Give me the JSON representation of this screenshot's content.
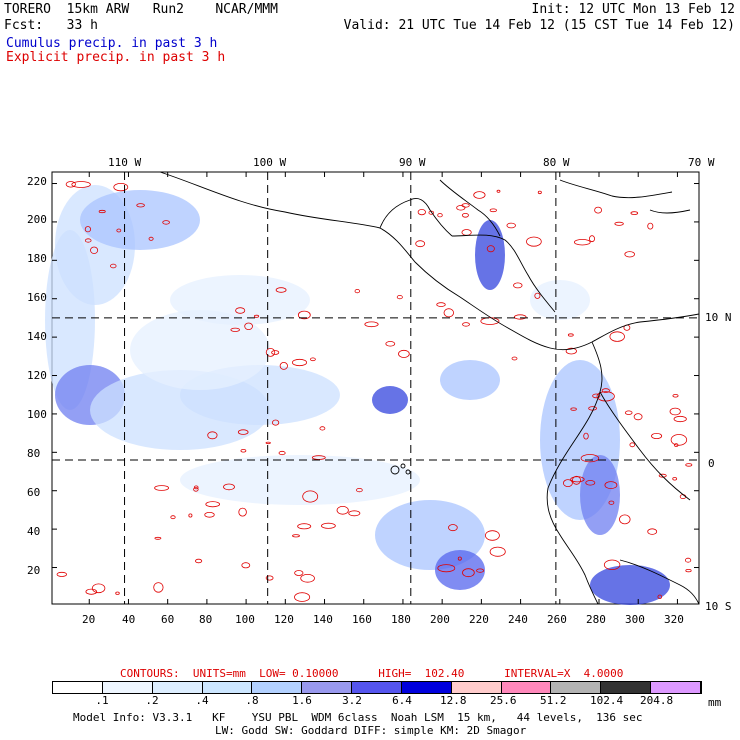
{
  "header": {
    "model": "TORERO  15km ARW   Run2    NCAR/MMM",
    "init": "Init: 12 UTC Mon 13 Feb 12",
    "forecast": "Fcst:   33 h",
    "valid": "Valid: 21 UTC Tue 14 Feb 12 (15 CST Tue 14 Feb 12)",
    "field1": "Cumulus precip. in past 3 h",
    "field2": "Explicit precip. in past 3 h"
  },
  "colors": {
    "field1": "#0000cc",
    "field2": "#dd0000",
    "contour": "#e00000",
    "grid": "#000000",
    "coast": "#000000"
  },
  "map": {
    "lon_labels": [
      "110 W",
      "100 W",
      "90 W",
      "80 W",
      "70 W"
    ],
    "lat_labels": [
      "10 N",
      "0",
      "10 S"
    ],
    "y_ticks": [
      "220",
      "200",
      "180",
      "160",
      "140",
      "120",
      "100",
      "80",
      "60",
      "40",
      "20"
    ],
    "x_ticks": [
      "20",
      "40",
      "60",
      "80",
      "100",
      "120",
      "140",
      "160",
      "180",
      "200",
      "220",
      "240",
      "260",
      "280",
      "300",
      "320"
    ],
    "grid_x_index": [
      38,
      111,
      184,
      258
    ],
    "grid_y_index": [
      150,
      76
    ]
  },
  "contour_info": {
    "text": "CONTOURS:  UNITS=mm  LOW= 0.10000      HIGH=  102.40      INTERVAL=X  4.0000"
  },
  "colorbar": {
    "labels": [
      ".1",
      ".2",
      ".4",
      ".8",
      "1.6",
      "3.2",
      "6.4",
      "12.8",
      "25.6",
      "51.2",
      "102.4",
      "204.8"
    ],
    "unit": "mm",
    "colors": [
      "#ffffff",
      "#eef6ff",
      "#ddeeff",
      "#cce6ff",
      "#b3d1ff",
      "#9999ee",
      "#5555ee",
      "#0000dd",
      "#ffcccc",
      "#ff88bb",
      "#b3b3b3",
      "#333333",
      "#dd99ff"
    ]
  },
  "footer": {
    "line1": "Model Info: V3.3.1   KF    YSU PBL  WDM 6class  Noah LSM  15 km,   44 levels,  136 sec",
    "line2": "LW: Godd SW: Goddard DIFF: simple KM: 2D Smagor"
  }
}
